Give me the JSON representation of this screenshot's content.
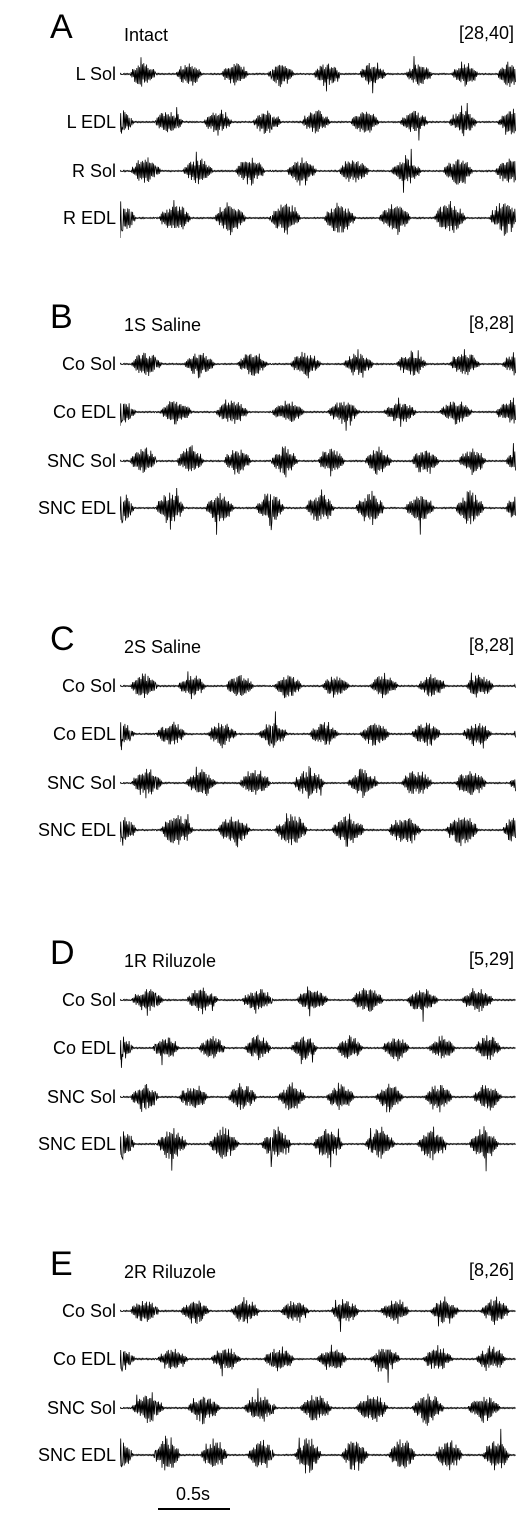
{
  "chart_data": {
    "type": "line",
    "title": "",
    "panels": [
      {
        "letter": "A",
        "condition": "Intact",
        "range": "[28,40]",
        "traces": [
          "L Sol",
          "L EDL",
          "R Sol",
          "R EDL"
        ]
      },
      {
        "letter": "B",
        "condition": "1S Saline",
        "range": "[8,28]",
        "traces": [
          "Co Sol",
          "Co EDL",
          "SNC Sol",
          "SNC EDL"
        ]
      },
      {
        "letter": "C",
        "condition": "2S Saline",
        "range": "[8,28]",
        "traces": [
          "Co Sol",
          "Co EDL",
          "SNC Sol",
          "SNC EDL"
        ]
      },
      {
        "letter": "D",
        "condition": "1R Riluzole",
        "range": "[5,29]",
        "traces": [
          "Co Sol",
          "Co EDL",
          "SNC Sol",
          "SNC EDL"
        ]
      },
      {
        "letter": "E",
        "condition": "2R Riluzole",
        "range": "[8,26]",
        "traces": [
          "Co Sol",
          "Co EDL",
          "SNC Sol",
          "SNC EDL"
        ]
      }
    ],
    "scale_bar": {
      "label": "0.5s"
    },
    "trace_color": "#000000"
  }
}
